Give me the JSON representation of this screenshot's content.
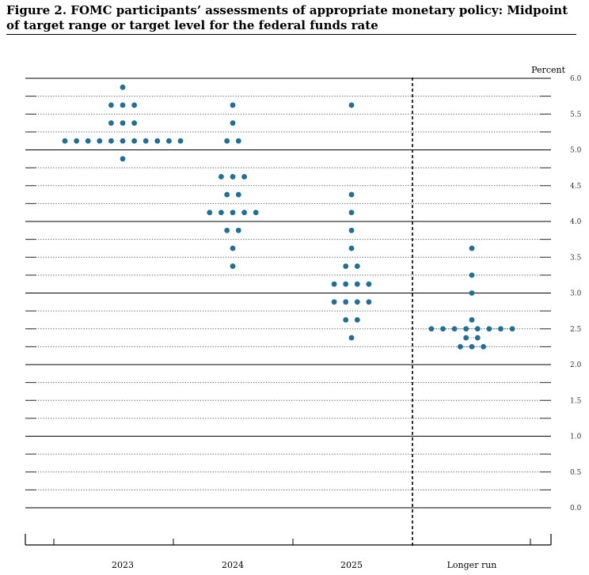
{
  "figure": {
    "title": "Figure 2.  FOMC participants’ assessments of appropriate monetary policy:  Midpoint of target range or target level for the federal funds rate"
  },
  "chart_data": {
    "type": "scatter",
    "title": "Figure 2.  FOMC participants’ assessments of appropriate monetary policy:  Midpoint of target range or target level for the federal funds rate",
    "ylabel": "Percent",
    "ylim": [
      0,
      6.0
    ],
    "y_ticks": [
      "0.0",
      "0.5",
      "1.0",
      "1.5",
      "2.0",
      "2.5",
      "3.0",
      "3.5",
      "4.0",
      "4.5",
      "5.0",
      "5.5",
      "6.0"
    ],
    "categories": [
      "2023",
      "2024",
      "2025",
      "Longer run"
    ],
    "dot_color": "#1f6f99",
    "grid": "dotted-horizontal",
    "separator": "dashed vertical line before Longer run",
    "groups": [
      {
        "category": "2023",
        "points": [
          {
            "y": 5.875,
            "count": 1
          },
          {
            "y": 5.625,
            "count": 3
          },
          {
            "y": 5.375,
            "count": 3
          },
          {
            "y": 5.125,
            "count": 11
          },
          {
            "y": 4.875,
            "count": 1
          }
        ]
      },
      {
        "category": "2024",
        "points": [
          {
            "y": 5.625,
            "count": 1
          },
          {
            "y": 5.375,
            "count": 1
          },
          {
            "y": 5.125,
            "count": 2
          },
          {
            "y": 4.625,
            "count": 3
          },
          {
            "y": 4.375,
            "count": 2
          },
          {
            "y": 4.125,
            "count": 5
          },
          {
            "y": 3.875,
            "count": 2
          },
          {
            "y": 3.625,
            "count": 1
          },
          {
            "y": 3.375,
            "count": 1
          }
        ]
      },
      {
        "category": "2025",
        "points": [
          {
            "y": 5.625,
            "count": 1
          },
          {
            "y": 4.375,
            "count": 1
          },
          {
            "y": 4.125,
            "count": 1
          },
          {
            "y": 3.875,
            "count": 1
          },
          {
            "y": 3.625,
            "count": 1
          },
          {
            "y": 3.375,
            "count": 2
          },
          {
            "y": 3.125,
            "count": 4
          },
          {
            "y": 2.875,
            "count": 4
          },
          {
            "y": 2.625,
            "count": 2
          },
          {
            "y": 2.375,
            "count": 1
          }
        ]
      },
      {
        "category": "Longer run",
        "points": [
          {
            "y": 3.625,
            "count": 1
          },
          {
            "y": 3.25,
            "count": 1
          },
          {
            "y": 3.0,
            "count": 1
          },
          {
            "y": 2.625,
            "count": 1
          },
          {
            "y": 2.5,
            "count": 8
          },
          {
            "y": 2.375,
            "count": 2
          },
          {
            "y": 2.25,
            "count": 3
          }
        ]
      }
    ]
  }
}
